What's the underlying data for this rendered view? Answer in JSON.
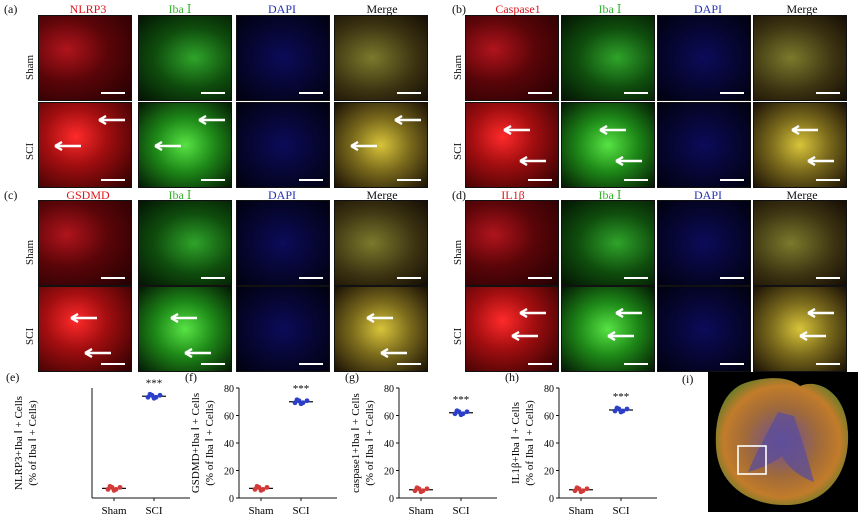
{
  "panels": {
    "a": {
      "label": "(a)",
      "columns": [
        "NLRP3",
        "Iba Ⅰ",
        "DAPI",
        "Merge"
      ],
      "column_colors": [
        "#e0161d",
        "#34b52b",
        "#2431b6",
        "#1a1a1a"
      ]
    },
    "b": {
      "label": "(b)",
      "columns": [
        "Caspase1",
        "Iba Ⅰ",
        "DAPI",
        "Merge"
      ],
      "column_colors": [
        "#e0161d",
        "#34b52b",
        "#2431b6",
        "#1a1a1a"
      ]
    },
    "c": {
      "label": "(c)",
      "columns": [
        "GSDMD",
        "Iba Ⅰ",
        "DAPI",
        "Merge"
      ],
      "column_colors": [
        "#e0161d",
        "#34b52b",
        "#2431b6",
        "#1a1a1a"
      ]
    },
    "d": {
      "label": "(d)",
      "columns": [
        "IL1β",
        "Iba Ⅰ",
        "DAPI",
        "Merge"
      ],
      "column_colors": [
        "#e0161d",
        "#34b52b",
        "#2431b6",
        "#1a1a1a"
      ]
    },
    "row_labels": [
      "Sham",
      "SCI"
    ]
  },
  "charts": {
    "e": {
      "label": "(e)",
      "ylabel_line1": "NLRP3+Iba Ⅰ + Cells",
      "ylabel_line2": "(% of  Iba Ⅰ + Cells)"
    },
    "f": {
      "label": "(f)",
      "ylabel_line1": "GSDMD+Iba Ⅰ + Cells",
      "ylabel_line2": "(% of  Iba Ⅰ + Cells)"
    },
    "g": {
      "label": "(g)",
      "ylabel_line1": "caspase1+Iba Ⅰ + Cells",
      "ylabel_line2": "(% of  Iba Ⅰ + Cells)"
    },
    "h": {
      "label": "(h)",
      "ylabel_line1": "IL1β+Iba Ⅰ + Cells",
      "ylabel_line2": "(% of  Iba Ⅰ + Cells)"
    },
    "i": {
      "label": "(i)"
    }
  },
  "chart_data": [
    {
      "type": "scatter",
      "categories": [
        "Sham",
        "SCI"
      ],
      "ylim": [
        0,
        80
      ],
      "yticks": [],
      "series": [
        {
          "values": [
            7,
            74
          ]
        }
      ],
      "annotation": "***",
      "sham_color": "#d23a3a",
      "sci_color": "#2b3fc9"
    },
    {
      "type": "scatter",
      "categories": [
        "Sham",
        "SCI"
      ],
      "ylim": [
        0,
        80
      ],
      "yticks": [
        "0",
        "20",
        "40",
        "60",
        "80"
      ],
      "series": [
        {
          "values": [
            7,
            70
          ]
        }
      ],
      "annotation": "***",
      "sham_color": "#d23a3a",
      "sci_color": "#2b3fc9"
    },
    {
      "type": "scatter",
      "categories": [
        "Sham",
        "SCI"
      ],
      "ylim": [
        0,
        80
      ],
      "yticks": [
        "0",
        "20",
        "40",
        "60",
        "80"
      ],
      "series": [
        {
          "values": [
            6,
            62
          ]
        }
      ],
      "annotation": "***",
      "sham_color": "#d23a3a",
      "sci_color": "#2b3fc9"
    },
    {
      "type": "scatter",
      "categories": [
        "Sham",
        "SCI"
      ],
      "ylim": [
        0,
        80
      ],
      "yticks": [
        "0",
        "20",
        "40",
        "60",
        "80"
      ],
      "series": [
        {
          "values": [
            6,
            64
          ]
        }
      ],
      "annotation": "***",
      "sham_color": "#d23a3a",
      "sci_color": "#2b3fc9"
    }
  ]
}
